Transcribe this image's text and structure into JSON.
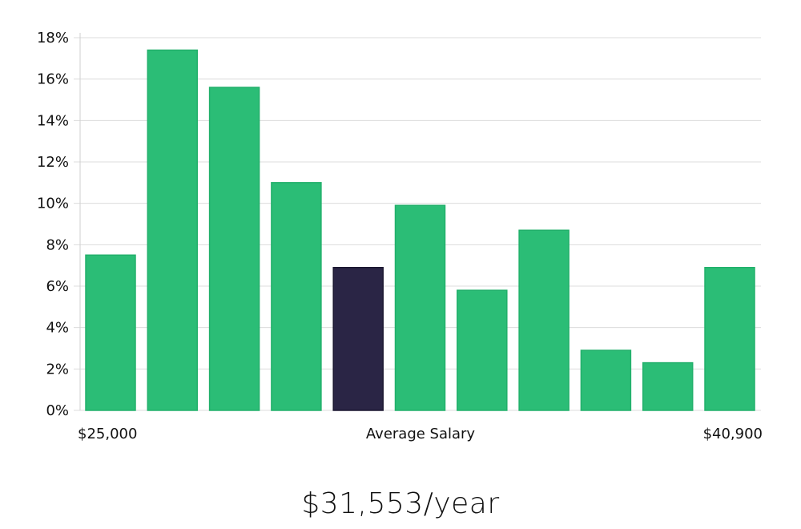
{
  "chart_data": {
    "type": "bar",
    "title": "",
    "xlabel": "Average Salary",
    "ylabel": "",
    "x_range_labels": {
      "min": "$25,000",
      "max": "$40,900"
    },
    "values": [
      7.5,
      17.4,
      15.6,
      11.0,
      6.9,
      9.9,
      5.8,
      8.7,
      2.9,
      2.3,
      6.9
    ],
    "highlight_index": 4,
    "ylim": [
      0,
      18
    ],
    "yticks": [
      0,
      2,
      4,
      6,
      8,
      10,
      12,
      14,
      16,
      18
    ],
    "ytick_suffix": "%",
    "grid": true,
    "colors": {
      "bar": "#2bbd76",
      "bar_edge": "#22b06b",
      "highlight": "#2a2545",
      "highlight_edge": "#1b1730"
    }
  },
  "summary": {
    "salary_text": "$31,553/year"
  }
}
